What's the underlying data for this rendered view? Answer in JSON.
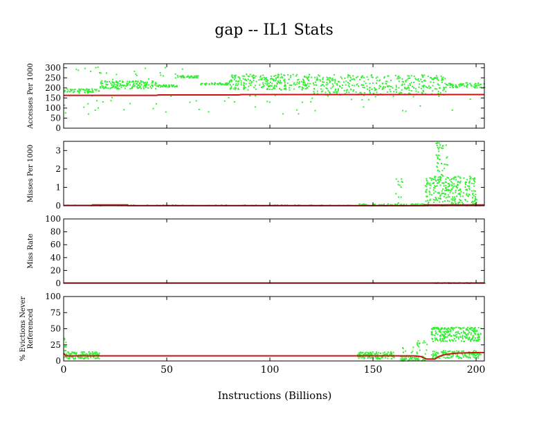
{
  "chart_data": {
    "type": "scatter",
    "title": "gap -- IL1  Stats",
    "xlabel": "Instructions (Billions)",
    "xlim": [
      0,
      204
    ],
    "xticks": [
      0,
      50,
      100,
      150,
      200
    ],
    "colors": {
      "points": "#33ee33",
      "trend": "#cc1111",
      "frame": "#000000"
    },
    "panels": [
      {
        "ylabel": [
          "Accesses Per 1000"
        ],
        "ylim": [
          0,
          320
        ],
        "yticks": [
          0,
          50,
          100,
          150,
          200,
          250,
          300
        ],
        "trend": {
          "x": [
            0,
            45,
            46,
            85,
            86,
            204
          ],
          "y": [
            163,
            163,
            165,
            165,
            167,
            167
          ]
        },
        "series": [
          {
            "name": "",
            "x_range": [
              0,
              17
            ],
            "y_range": [
              175,
              195
            ],
            "count": 60
          },
          {
            "name": "",
            "x_range": [
              17,
              45
            ],
            "y_range": [
              195,
              235
            ],
            "count": 160
          },
          {
            "name": "",
            "x_range": [
              45,
              55
            ],
            "y_range": [
              205,
              215
            ],
            "count": 40
          },
          {
            "name": "",
            "x_range": [
              55,
              65
            ],
            "y_range": [
              250,
              260
            ],
            "count": 40
          },
          {
            "name": "",
            "x_range": [
              65,
              80
            ],
            "y_range": [
              215,
              225
            ],
            "count": 50
          },
          {
            "name": "",
            "x_range": [
              80,
              120
            ],
            "y_range": [
              190,
              270
            ],
            "count": 260
          },
          {
            "name": "",
            "x_range": [
              120,
              185
            ],
            "y_range": [
              165,
              265
            ],
            "count": 360
          },
          {
            "name": "",
            "x_range": [
              185,
              204
            ],
            "y_range": [
              200,
              225
            ],
            "count": 70
          },
          {
            "name": "",
            "x_range": [
              0,
              200
            ],
            "y_range": [
              70,
              165
            ],
            "count": 55
          },
          {
            "name": "",
            "x_range": [
              5,
              60
            ],
            "y_range": [
              240,
              305
            ],
            "count": 25
          }
        ]
      },
      {
        "ylabel": [
          "Misses Per 1000"
        ],
        "ylim": [
          0,
          3.5
        ],
        "yticks": [
          0,
          1,
          2,
          3
        ],
        "trend": {
          "x": [
            0,
            14,
            14,
            31,
            31,
            175,
            175,
            204
          ],
          "y": [
            0.02,
            0.02,
            0.05,
            0.05,
            0.01,
            0.01,
            0.05,
            0.05
          ]
        },
        "series": [
          {
            "name": "",
            "x_range": [
              0,
              204
            ],
            "y_range": [
              0,
              0.04
            ],
            "count": 120
          },
          {
            "name": "",
            "x_range": [
              142,
              175
            ],
            "y_range": [
              0.02,
              0.1
            ],
            "count": 60
          },
          {
            "name": "",
            "x_range": [
              175,
              200
            ],
            "y_range": [
              0.1,
              1.6
            ],
            "count": 260
          },
          {
            "name": "",
            "x_range": [
              180,
              186
            ],
            "y_range": [
              1.6,
              3.5
            ],
            "count": 40
          },
          {
            "name": "",
            "x_range": [
              160,
              165
            ],
            "y_range": [
              0.1,
              1.5
            ],
            "count": 12
          }
        ]
      },
      {
        "ylabel": [
          "Miss Rate"
        ],
        "ylim": [
          0,
          100
        ],
        "yticks": [
          0,
          20,
          40,
          60,
          80,
          100
        ],
        "trend": {
          "x": [
            0,
            204
          ],
          "y": [
            0.5,
            0.5
          ]
        },
        "series": [
          {
            "name": "",
            "x_range": [
              178,
              204
            ],
            "y_range": [
              0,
              1
            ],
            "count": 40
          }
        ]
      },
      {
        "ylabel": [
          "% Evictions Never",
          "Referenced"
        ],
        "ylim": [
          0,
          100
        ],
        "yticks": [
          0,
          25,
          50,
          75,
          100
        ],
        "trend": {
          "x": [
            0,
            1,
            3,
            16,
            17,
            140,
            160,
            170,
            173,
            176,
            180,
            182,
            185,
            190,
            200,
            204
          ],
          "y": [
            12,
            8,
            8,
            8,
            8,
            8,
            8,
            8,
            7,
            3,
            3,
            7,
            10,
            12,
            13,
            13
          ]
        },
        "series": [
          {
            "name": "",
            "x_range": [
              0,
              17
            ],
            "y_range": [
              3,
              14
            ],
            "count": 120
          },
          {
            "name": "",
            "x_range": [
              0,
              1
            ],
            "y_range": [
              15,
              37
            ],
            "count": 8
          },
          {
            "name": "",
            "x_range": [
              142,
              160
            ],
            "y_range": [
              3,
              14
            ],
            "count": 120
          },
          {
            "name": "",
            "x_range": [
              163,
              175
            ],
            "y_range": [
              0,
              8
            ],
            "count": 60
          },
          {
            "name": "",
            "x_range": [
              164,
              176
            ],
            "y_range": [
              10,
              32
            ],
            "count": 25
          },
          {
            "name": "",
            "x_range": [
              178,
              202
            ],
            "y_range": [
              30,
              52
            ],
            "count": 200
          },
          {
            "name": "",
            "x_range": [
              178,
              202
            ],
            "y_range": [
              4,
              16
            ],
            "count": 140
          },
          {
            "name": "",
            "x_range": [
              178,
              200
            ],
            "y_range": [
              49,
              52
            ],
            "count": 50
          }
        ]
      }
    ]
  }
}
